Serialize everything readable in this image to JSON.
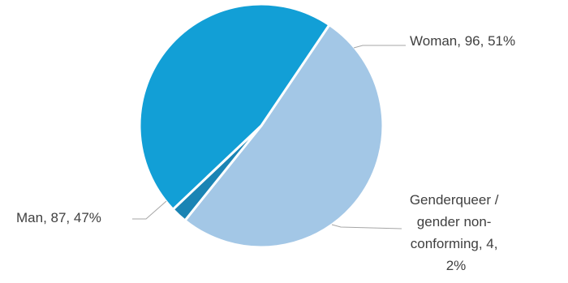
{
  "chart_data": {
    "type": "pie",
    "title": "",
    "slices": [
      {
        "name": "Woman",
        "value": 96,
        "percent": 51,
        "color": "#a3c7e6",
        "label_lines": [
          "Woman, 96, 51%"
        ]
      },
      {
        "name": "Genderqueer / gender non-conforming",
        "value": 4,
        "percent": 2,
        "color": "#1a84b4",
        "label_lines": [
          "Genderqueer /",
          "gender non-",
          "conforming, 4,",
          "2%"
        ]
      },
      {
        "name": "Man",
        "value": 87,
        "percent": 47,
        "color": "#129fd6",
        "label_lines": [
          "Man, 87, 47%"
        ]
      }
    ],
    "start_angle_deg": -56,
    "direction": "clockwise",
    "legend": "none",
    "data_label_position": "outside-with-leader-lines"
  }
}
